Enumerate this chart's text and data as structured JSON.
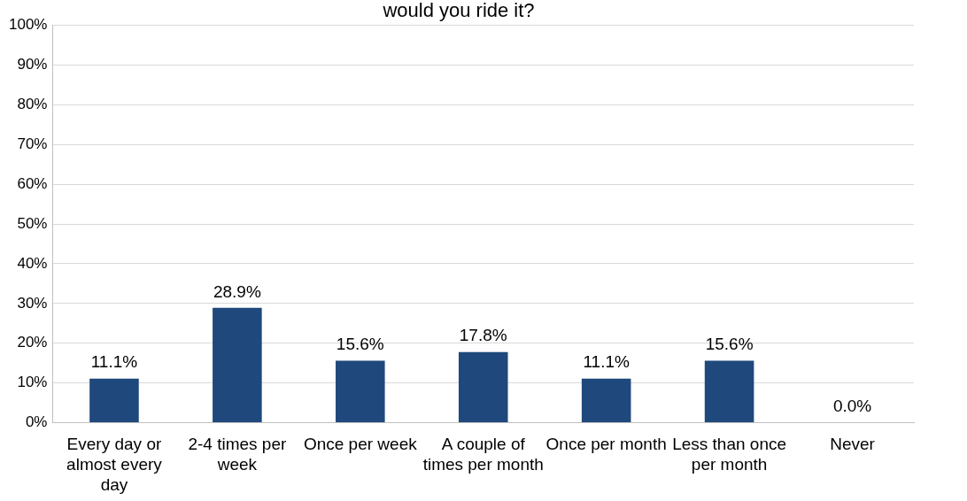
{
  "chart_data": {
    "type": "bar",
    "title": "would you ride it?",
    "categories": [
      "Every day or almost every day",
      "2-4 times per week",
      "Once per week",
      "A couple of times per month",
      "Once per month",
      "Less than once per month",
      "Never"
    ],
    "values": [
      11.1,
      28.9,
      15.6,
      17.8,
      11.1,
      15.6,
      0.0
    ],
    "value_labels": [
      "11.1%",
      "28.9%",
      "15.6%",
      "17.8%",
      "11.1%",
      "15.6%",
      "0.0%"
    ],
    "color": "#1f497d",
    "ylim": [
      0,
      100
    ],
    "yticks": [
      {
        "value": 0,
        "label": "0%"
      },
      {
        "value": 10,
        "label": "10%"
      },
      {
        "value": 20,
        "label": "20%"
      },
      {
        "value": 30,
        "label": "30%"
      },
      {
        "value": 40,
        "label": "40%"
      },
      {
        "value": 50,
        "label": "50%"
      },
      {
        "value": 60,
        "label": "60%"
      },
      {
        "value": 70,
        "label": "70%"
      },
      {
        "value": 80,
        "label": "80%"
      },
      {
        "value": 90,
        "label": "90%"
      },
      {
        "value": 100,
        "label": "100%"
      }
    ],
    "grid": "y",
    "legend": false
  }
}
